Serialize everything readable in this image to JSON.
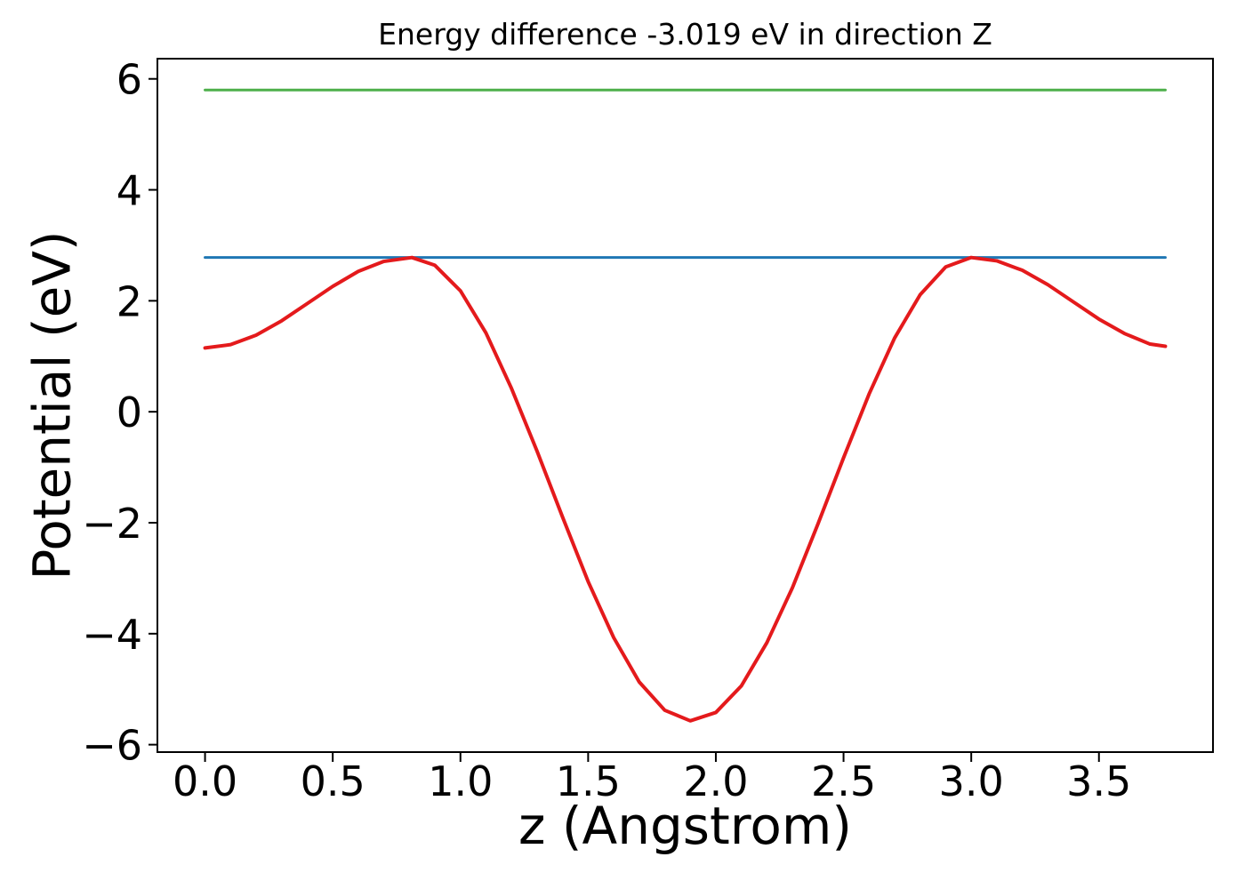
{
  "figure": {
    "title": "Energy difference -3.019 eV in direction Z",
    "xlabel": "z (Angstrom)",
    "ylabel": "Potential (eV)",
    "background_color": "#ffffff",
    "text_color": "#000000"
  },
  "chart_data": {
    "type": "line",
    "title": "Energy difference -3.019 eV in direction Z",
    "xlabel": "z (Angstrom)",
    "ylabel": "Potential (eV)",
    "xlim": [
      -0.19,
      3.95
    ],
    "ylim": [
      -6.15,
      6.38
    ],
    "grid": false,
    "legend": false,
    "energy_difference_eV": -3.019,
    "direction": "Z",
    "x_ticks": {
      "values": [
        0.0,
        0.5,
        1.0,
        1.5,
        2.0,
        2.5,
        3.0,
        3.5
      ],
      "labels": [
        "0.0",
        "0.5",
        "1.0",
        "1.5",
        "2.0",
        "2.5",
        "3.0",
        "3.5"
      ]
    },
    "y_ticks": {
      "values": [
        6,
        4,
        2,
        0,
        -2,
        -4,
        -6
      ],
      "labels": [
        "6",
        "4",
        "2",
        "0",
        "−2",
        "−4",
        "−6"
      ]
    },
    "series": [
      {
        "name": "reference-level-line",
        "type": "hline",
        "color": "#4daf4a",
        "y_value": 5.8,
        "x": [
          0.0,
          3.76
        ]
      },
      {
        "name": "max-potential-line",
        "type": "hline",
        "color": "#1f77b4",
        "y_value": 2.78,
        "x": [
          0.0,
          3.76
        ]
      },
      {
        "name": "potential-curve",
        "type": "curve",
        "color": "#e41a1c",
        "x": [
          0.0,
          0.1,
          0.2,
          0.3,
          0.4,
          0.5,
          0.6,
          0.7,
          0.81,
          0.9,
          1.0,
          1.1,
          1.2,
          1.3,
          1.4,
          1.5,
          1.6,
          1.7,
          1.8,
          1.9,
          2.0,
          2.1,
          2.2,
          2.3,
          2.4,
          2.5,
          2.6,
          2.7,
          2.8,
          2.9,
          3.0,
          3.1,
          3.2,
          3.3,
          3.4,
          3.5,
          3.6,
          3.7,
          3.76
        ],
        "y": [
          1.15,
          1.21,
          1.38,
          1.64,
          1.95,
          2.26,
          2.53,
          2.71,
          2.78,
          2.64,
          2.18,
          1.42,
          0.42,
          -0.71,
          -1.9,
          -3.06,
          -4.07,
          -4.87,
          -5.38,
          -5.57,
          -5.42,
          -4.94,
          -4.16,
          -3.17,
          -2.02,
          -0.83,
          0.32,
          1.33,
          2.11,
          2.61,
          2.78,
          2.72,
          2.55,
          2.29,
          1.98,
          1.67,
          1.41,
          1.22,
          1.18
        ]
      }
    ]
  }
}
